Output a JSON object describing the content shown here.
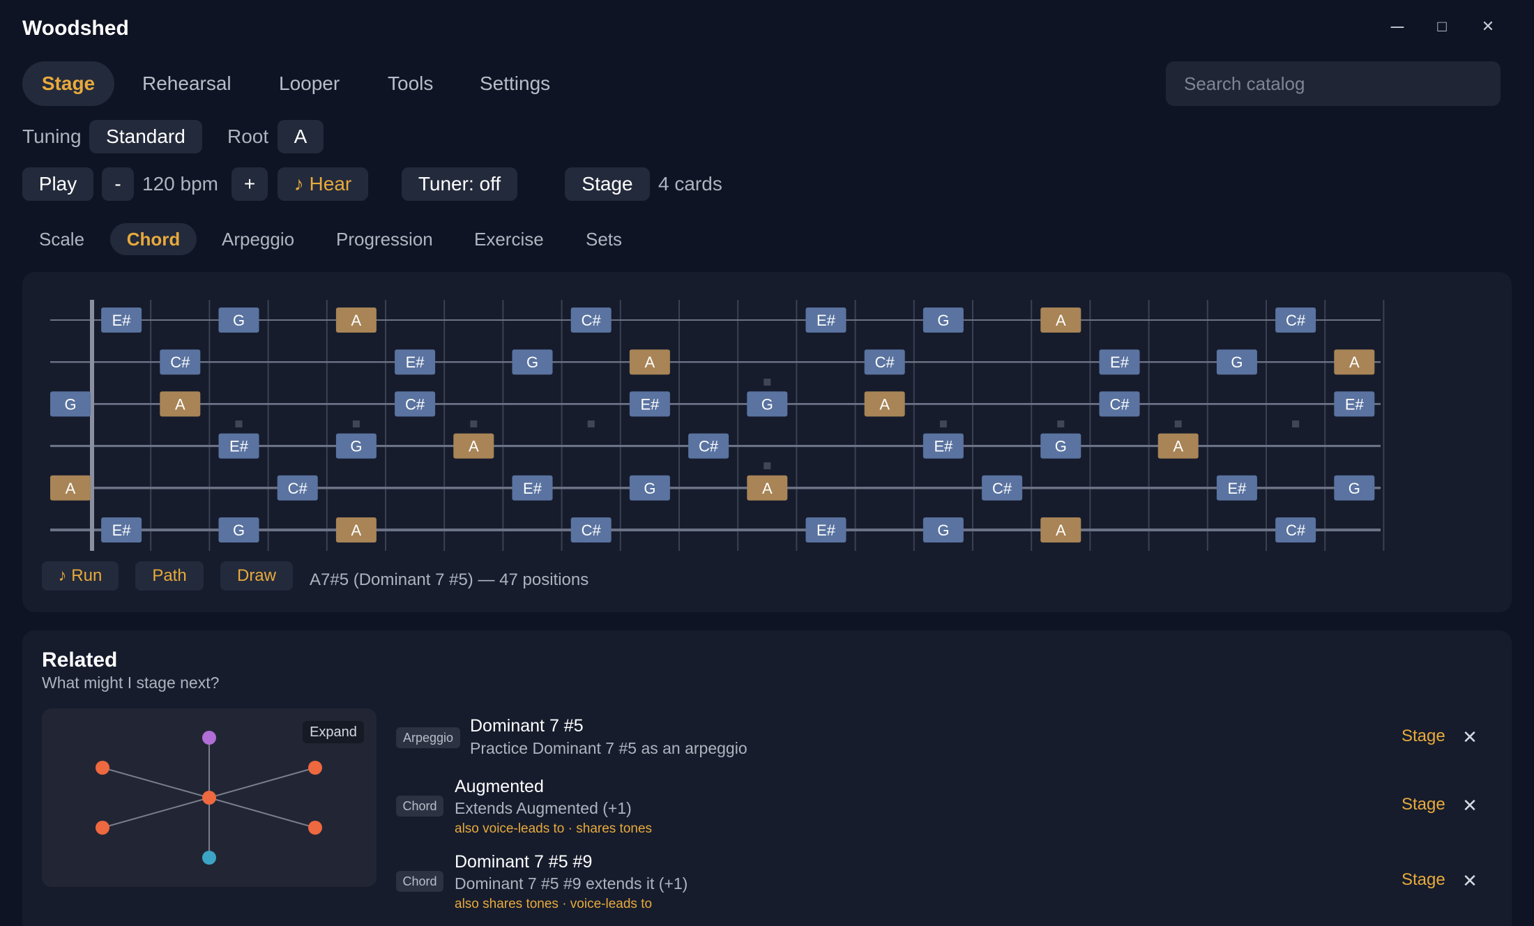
{
  "app": {
    "title": "Woodshed"
  },
  "window": {
    "minimize": "─",
    "maximize": "□",
    "close": "✕"
  },
  "nav": {
    "tabs": [
      "Stage",
      "Rehearsal",
      "Looper",
      "Tools",
      "Settings"
    ],
    "active": "Stage"
  },
  "search": {
    "placeholder": "Search catalog",
    "value": ""
  },
  "tuning": {
    "label": "Tuning",
    "value": "Standard"
  },
  "root": {
    "label": "Root",
    "value": "A"
  },
  "transport": {
    "play": "Play",
    "minus": "-",
    "bpm": "120 bpm",
    "plus": "+",
    "hear": "♪ Hear",
    "tuner": "Tuner: off",
    "stage": "Stage",
    "cards": "4 cards"
  },
  "subnav": {
    "tabs": [
      "Scale",
      "Chord",
      "Arpeggio",
      "Progression",
      "Exercise",
      "Sets"
    ],
    "active": "Chord"
  },
  "fretboard": {
    "strings": 6,
    "frets": 22,
    "root_note": "A",
    "inlay_frets_single": [
      3,
      5,
      7,
      9,
      15,
      17,
      19,
      21
    ],
    "inlay_frets_double": [
      12
    ],
    "notes": [
      {
        "s": 1,
        "f": 1,
        "n": "E#"
      },
      {
        "s": 1,
        "f": 3,
        "n": "G"
      },
      {
        "s": 1,
        "f": 5,
        "n": "A"
      },
      {
        "s": 1,
        "f": 9,
        "n": "C#"
      },
      {
        "s": 1,
        "f": 13,
        "n": "E#"
      },
      {
        "s": 1,
        "f": 15,
        "n": "G"
      },
      {
        "s": 1,
        "f": 17,
        "n": "A"
      },
      {
        "s": 1,
        "f": 21,
        "n": "C#"
      },
      {
        "s": 2,
        "f": 2,
        "n": "C#"
      },
      {
        "s": 2,
        "f": 6,
        "n": "E#"
      },
      {
        "s": 2,
        "f": 8,
        "n": "G"
      },
      {
        "s": 2,
        "f": 10,
        "n": "A"
      },
      {
        "s": 2,
        "f": 14,
        "n": "C#"
      },
      {
        "s": 2,
        "f": 18,
        "n": "E#"
      },
      {
        "s": 2,
        "f": 20,
        "n": "G"
      },
      {
        "s": 2,
        "f": 22,
        "n": "A"
      },
      {
        "s": 3,
        "f": 0,
        "n": "G"
      },
      {
        "s": 3,
        "f": 2,
        "n": "A"
      },
      {
        "s": 3,
        "f": 6,
        "n": "C#"
      },
      {
        "s": 3,
        "f": 10,
        "n": "E#"
      },
      {
        "s": 3,
        "f": 12,
        "n": "G"
      },
      {
        "s": 3,
        "f": 14,
        "n": "A"
      },
      {
        "s": 3,
        "f": 18,
        "n": "C#"
      },
      {
        "s": 3,
        "f": 22,
        "n": "E#"
      },
      {
        "s": 4,
        "f": 3,
        "n": "E#"
      },
      {
        "s": 4,
        "f": 5,
        "n": "G"
      },
      {
        "s": 4,
        "f": 7,
        "n": "A"
      },
      {
        "s": 4,
        "f": 11,
        "n": "C#"
      },
      {
        "s": 4,
        "f": 15,
        "n": "E#"
      },
      {
        "s": 4,
        "f": 17,
        "n": "G"
      },
      {
        "s": 4,
        "f": 19,
        "n": "A"
      },
      {
        "s": 5,
        "f": 0,
        "n": "A"
      },
      {
        "s": 5,
        "f": 4,
        "n": "C#"
      },
      {
        "s": 5,
        "f": 8,
        "n": "E#"
      },
      {
        "s": 5,
        "f": 10,
        "n": "G"
      },
      {
        "s": 5,
        "f": 12,
        "n": "A"
      },
      {
        "s": 5,
        "f": 16,
        "n": "C#"
      },
      {
        "s": 5,
        "f": 20,
        "n": "E#"
      },
      {
        "s": 5,
        "f": 22,
        "n": "G"
      },
      {
        "s": 6,
        "f": 1,
        "n": "E#"
      },
      {
        "s": 6,
        "f": 3,
        "n": "G"
      },
      {
        "s": 6,
        "f": 5,
        "n": "A"
      },
      {
        "s": 6,
        "f": 9,
        "n": "C#"
      },
      {
        "s": 6,
        "f": 13,
        "n": "E#"
      },
      {
        "s": 6,
        "f": 15,
        "n": "G"
      },
      {
        "s": 6,
        "f": 17,
        "n": "A"
      },
      {
        "s": 6,
        "f": 21,
        "n": "C#"
      }
    ],
    "actions": {
      "run": "♪ Run",
      "path": "Path",
      "draw": "Draw"
    },
    "summary": "A7#5 (Dominant 7 #5) — 47 positions"
  },
  "colors": {
    "accent": "#e8aa3c",
    "note_box": "#5a73a0",
    "root_box": "#a88456",
    "node_orange": "#ee6840",
    "node_purple": "#b06ed6",
    "node_teal": "#3ca4c4"
  },
  "related": {
    "title": "Related",
    "subtitle": "What might I stage next?",
    "expand": "Expand",
    "items": [
      {
        "badge": "Arpeggio",
        "title": "Dominant 7 #5",
        "desc": "Practice Dominant 7 #5 as an arpeggio",
        "note": "",
        "action": "Stage",
        "close": "✕"
      },
      {
        "badge": "Chord",
        "title": "Augmented",
        "desc": "Extends Augmented (+1)",
        "note": "also voice-leads to · shares tones",
        "action": "Stage",
        "close": "✕"
      },
      {
        "badge": "Chord",
        "title": "Dominant 7 #5 #9",
        "desc": "Dominant 7 #5 #9 extends it (+1)",
        "note": "also shares tones · voice-leads to",
        "action": "Stage",
        "close": "✕"
      }
    ]
  }
}
